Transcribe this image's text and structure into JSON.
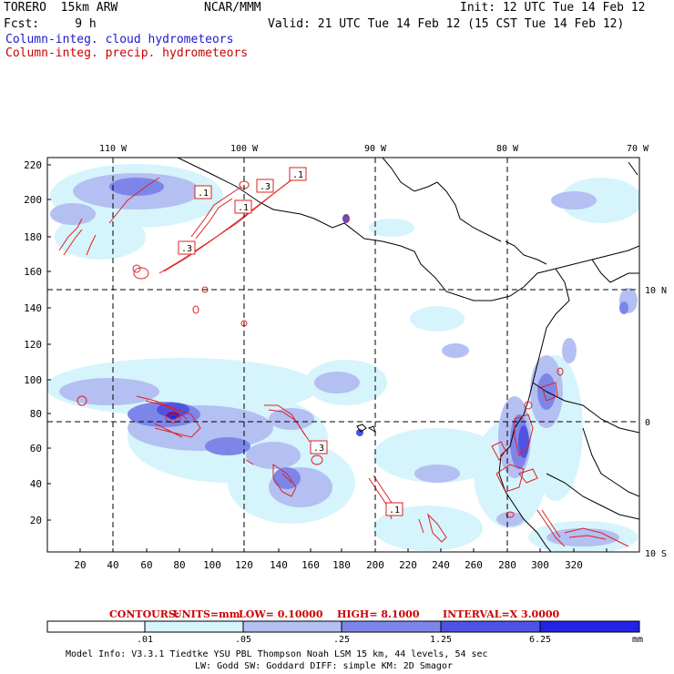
{
  "header": {
    "model": "TORERO  15km ARW",
    "center": "NCAR/MMM",
    "init": "Init: 12 UTC Tue 14 Feb 12",
    "fcst": "Fcst:     9 h",
    "valid": "Valid: 21 UTC Tue 14 Feb 12 (15 CST Tue 14 Feb 12)",
    "field_cloud": "Column-integ. cloud hydrometeors",
    "field_precip": "Column-integ. precip. hydrometeors"
  },
  "colors": {
    "cloud_label": "#1a1acc",
    "precip_label": "#cc0000",
    "contour": "#dd2222",
    "fill_1": "#d6f4fb",
    "fill_2": "#b4bff2",
    "fill_3": "#7d86e8",
    "fill_4": "#4f53e4",
    "fill_5": "#2323e6"
  },
  "map": {
    "top_lon_labels": [
      "110 W",
      "100 W",
      "90 W",
      "80 W",
      "70 W"
    ],
    "right_lat_labels": [
      "10 N",
      "0",
      "10 S"
    ],
    "y_ticks": [
      "220",
      "200",
      "180",
      "160",
      "140",
      "120",
      "100",
      "80",
      "60",
      "40",
      "20"
    ],
    "x_ticks": [
      "20",
      "40",
      "60",
      "80",
      "100",
      "120",
      "140",
      "160",
      "180",
      "200",
      "220",
      "240",
      "260",
      "280",
      "300",
      "320"
    ],
    "contour_labels": [
      ".1",
      ".3",
      ".1",
      ".1",
      ".3",
      ".3",
      ".3",
      ".1"
    ]
  },
  "contour_info": {
    "label": "CONTOURS:",
    "units": "UNITS=mm",
    "low": "LOW= 0.10000",
    "high": "HIGH= 8.1000",
    "interval": "INTERVAL=X 3.0000"
  },
  "colorbar": {
    "ticks": [
      ".01",
      ".05",
      ".25",
      "1.25",
      "6.25"
    ],
    "unit": "mm"
  },
  "footer": {
    "line1": "Model Info: V3.3.1   Tiedtke YSU PBL  Thompson    Noah LSM  15 km,   44 levels,   54 sec",
    "line2": "LW: Godd SW: Goddard DIFF: simple KM: 2D Smagor"
  }
}
